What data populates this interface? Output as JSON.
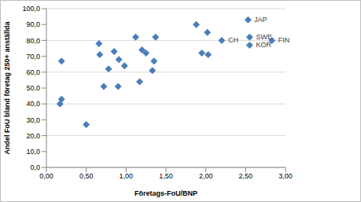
{
  "chart_data": {
    "type": "scatter",
    "x_label": "Företags-FoU/BNP",
    "y_label": "Andel FoU bland företag 250+ anställda",
    "x": [
      0.17,
      0.19,
      0.19,
      0.5,
      0.66,
      0.67,
      0.72,
      0.78,
      0.85,
      0.9,
      0.91,
      0.98,
      1.12,
      1.17,
      1.2,
      1.25,
      1.33,
      1.35,
      1.37,
      1.88,
      1.95,
      2.02,
      2.03,
      2.2,
      2.53,
      2.55,
      2.55,
      2.83
    ],
    "values": [
      40,
      43,
      67,
      27,
      78,
      71,
      51,
      62,
      73,
      51,
      68,
      64,
      82,
      54,
      74,
      72,
      61,
      67,
      82,
      90,
      72,
      85,
      71,
      80,
      93,
      82,
      77,
      80
    ],
    "point_labels": [
      null,
      null,
      null,
      null,
      null,
      null,
      null,
      null,
      null,
      null,
      null,
      null,
      null,
      null,
      null,
      null,
      null,
      null,
      null,
      null,
      null,
      null,
      null,
      "CH",
      "JAP",
      "SWE",
      "KOR",
      "FIN"
    ],
    "color": "#4a7ebb",
    "marker": "diamond",
    "xlim": [
      0,
      3
    ],
    "xticks": [
      {
        "value": 0,
        "label": "0,00"
      },
      {
        "value": 0.5,
        "label": "0,50"
      },
      {
        "value": 1,
        "label": "1,00"
      },
      {
        "value": 1.5,
        "label": "1,50"
      },
      {
        "value": 2,
        "label": "2,00"
      },
      {
        "value": 2.5,
        "label": "2,50"
      },
      {
        "value": 3,
        "label": "3,00"
      }
    ],
    "ylim": [
      0,
      100
    ],
    "yticks": [
      {
        "value": 0,
        "label": "0,0"
      },
      {
        "value": 10,
        "label": "10,0"
      },
      {
        "value": 20,
        "label": "20,0"
      },
      {
        "value": 30,
        "label": "30,0"
      },
      {
        "value": 40,
        "label": "40,0"
      },
      {
        "value": 50,
        "label": "50,0"
      },
      {
        "value": 60,
        "label": "60,0"
      },
      {
        "value": 70,
        "label": "70,0"
      },
      {
        "value": 80,
        "label": "80,0"
      },
      {
        "value": 90,
        "label": "90,0"
      },
      {
        "value": 100,
        "label": "100,0"
      }
    ],
    "grid": true
  }
}
